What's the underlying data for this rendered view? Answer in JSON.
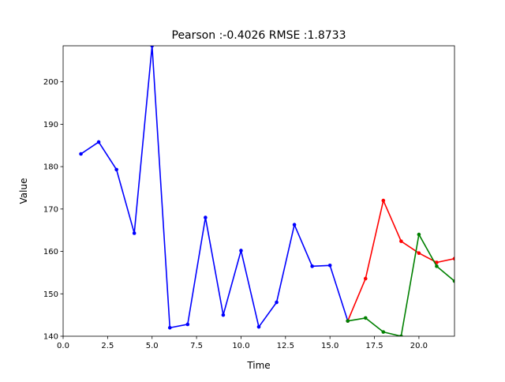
{
  "chart_data": {
    "type": "line",
    "title": "Pearson :-0.4026  RMSE :1.8733",
    "xlabel": "Time",
    "ylabel": "Value",
    "xlim": [
      0,
      22
    ],
    "ylim": [
      140,
      208.5
    ],
    "xticks": [
      0,
      2.5,
      5,
      7.5,
      10,
      12.5,
      15,
      17.5,
      20
    ],
    "xtick_labels": [
      "0.0",
      "2.5",
      "5.0",
      "7.5",
      "10.0",
      "12.5",
      "15.0",
      "17.5",
      "20.0"
    ],
    "yticks": [
      140,
      150,
      160,
      170,
      180,
      190,
      200
    ],
    "ytick_labels": [
      "140",
      "150",
      "160",
      "170",
      "180",
      "190",
      "200"
    ],
    "grid": false,
    "series": [
      {
        "color": "#0000ff",
        "x": [
          1,
          2,
          3,
          4,
          5,
          6,
          7,
          8,
          9,
          10,
          11,
          12,
          13,
          14,
          15,
          16
        ],
        "y": [
          183.0,
          185.8,
          179.3,
          164.3,
          208.5,
          142.0,
          142.8,
          168.0,
          145.0,
          160.2,
          142.2,
          148.0,
          166.3,
          156.5,
          156.7,
          143.6
        ]
      },
      {
        "color": "#ff0000",
        "x": [
          16,
          17,
          18,
          19,
          20,
          21,
          22
        ],
        "y": [
          143.6,
          153.6,
          172.0,
          162.4,
          159.6,
          157.4,
          158.3
        ]
      },
      {
        "color": "#008000",
        "x": [
          16,
          17,
          18,
          19,
          20,
          21,
          22
        ],
        "y": [
          143.6,
          144.3,
          141.0,
          140.0,
          164.0,
          156.5,
          153.0
        ]
      }
    ]
  }
}
